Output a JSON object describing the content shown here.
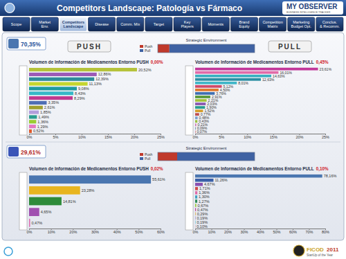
{
  "header": {
    "title": "Competitors Landscape: Patología vs Fármaco",
    "logo": "MY OBSERVER",
    "logo_tagline": "BUSINESS INTELLIGENCE TRACKER"
  },
  "nav": [
    {
      "label": "Scope"
    },
    {
      "label": "Market Env."
    },
    {
      "label": "Competitors Landscape",
      "active": true
    },
    {
      "label": "Disease"
    },
    {
      "label": "Comm. Mix"
    },
    {
      "label": "Target"
    },
    {
      "label": "Key Players"
    },
    {
      "label": "Moments"
    },
    {
      "label": "Brand Equity"
    },
    {
      "label": "Competition Matrix"
    },
    {
      "label": "Marketing Budget Opt."
    },
    {
      "label": "Conclus. & Recomm."
    }
  ],
  "sections": [
    {
      "share": "70,35%",
      "push_label": "PUSH",
      "pull_label": "PULL"
    },
    {
      "share": "29,61%"
    }
  ],
  "footer": {
    "award_name": "FICOD",
    "award_year": "2011",
    "award_subtitle": "StartUp of the Year"
  },
  "chart_data": [
    {
      "type": "bar",
      "orientation": "horizontal",
      "stacked": true,
      "title": "Strategic Environment",
      "categories": [
        null
      ],
      "series": [
        {
          "name": "Push",
          "color": "#c0392b",
          "values": [
            12
          ]
        },
        {
          "name": "Pull",
          "color": "#3f62a3",
          "values": [
            88
          ]
        }
      ],
      "xlim": [
        0,
        100
      ],
      "legend": "left",
      "tick_labels": false,
      "grid": false
    },
    {
      "type": "bar",
      "orientation": "horizontal",
      "title": "Volumen de Información de Medicamentos Entorno PUSH",
      "subtitle": "0,00%",
      "categories": [
        null,
        null,
        null,
        null,
        null,
        null,
        null,
        null,
        null,
        null,
        null,
        null,
        null,
        null
      ],
      "values": [
        20.52,
        12.86,
        12.39,
        11.13,
        9.08,
        8.43,
        8.29,
        3.35,
        2.61,
        1.85,
        1.49,
        1.36,
        1.29,
        0.52
      ],
      "value_labels": [
        "20,52%",
        "12,86%",
        "12,39%",
        "11,13%",
        "9,08%",
        "8,43%",
        "8,29%",
        "3,35%",
        "2,61%",
        "1,85%",
        "1,49%",
        "1,36%",
        "1,29%",
        "0,52%"
      ],
      "colors": [
        "#b5c23a",
        "#9b59b6",
        "#2e8b9a",
        "#c5d62e",
        "#1f9aa0",
        "#36b8c8",
        "#c0398f",
        "#4f6fb5",
        "#a0a030",
        "#b39ddb",
        "#2a9d8f",
        "#9acd32",
        "#e377c2",
        "#e05a2b"
      ],
      "xlim": [
        0,
        25
      ],
      "xticks": [
        {
          "value": 0,
          "label": "0%"
        },
        {
          "value": 5,
          "label": "5%"
        },
        {
          "value": 10,
          "label": "10%"
        },
        {
          "value": 15,
          "label": "15%"
        },
        {
          "value": 20,
          "label": "20%"
        },
        {
          "value": 25,
          "label": "25%"
        }
      ],
      "data_labels": true,
      "tick_labels": "x",
      "grid": false
    },
    {
      "type": "bar",
      "orientation": "horizontal",
      "title": "Volumen de Información de Medicamentos Entorno PULL",
      "subtitle": "0,45%",
      "categories": [
        null,
        null,
        null,
        null,
        null,
        null,
        null,
        null,
        null,
        null,
        null,
        null,
        null,
        null,
        null,
        null,
        null,
        null,
        null
      ],
      "values": [
        23.61,
        16.01,
        14.63,
        12.63,
        8.01,
        5.12,
        4.5,
        3.76,
        2.91,
        2.21,
        2.03,
        1.9,
        1.52,
        0.77,
        0.48,
        0.43,
        0.21,
        0.09,
        0.07
      ],
      "value_labels": [
        "23,61%",
        "16,01%",
        "14,63%",
        "12,63%",
        "8,01%",
        "5,12%",
        "4,50%",
        "3,76%",
        "2,91%",
        "2,21%",
        "2,03%",
        "1,90%",
        "1,52%",
        "0,77%",
        "0,48%",
        "0,43%",
        "0,21%",
        "0,09%",
        "0,07%"
      ],
      "colors": [
        "#c2379a",
        "#e26aa8",
        "#38b0c0",
        "#2b8fa3",
        "#40b6c8",
        "#d04a6a",
        "#e07a30",
        "#3f6fb0",
        "#5a9a3a",
        "#a4c23a",
        "#8a5ab0",
        "#2a9d8f",
        "#d6a030",
        "#c05050",
        "#7aa0d0",
        "#9bbf40",
        "#d070b0",
        "#5070a0",
        "#c04040"
      ],
      "xlim": [
        0,
        25
      ],
      "xticks": [
        {
          "value": 0,
          "label": "0%"
        },
        {
          "value": 5,
          "label": "5%"
        },
        {
          "value": 10,
          "label": "10%"
        },
        {
          "value": 15,
          "label": "15%"
        },
        {
          "value": 20,
          "label": "20%"
        },
        {
          "value": 25,
          "label": "25%"
        }
      ],
      "data_labels": true,
      "tick_labels": "x",
      "grid": false
    },
    {
      "type": "bar",
      "orientation": "horizontal",
      "stacked": true,
      "title": "Strategic Environment",
      "categories": [
        null
      ],
      "series": [
        {
          "name": "Push",
          "color": "#c0392b",
          "values": [
            20
          ]
        },
        {
          "name": "Pull",
          "color": "#3f62a3",
          "values": [
            80
          ]
        }
      ],
      "xlim": [
        0,
        100
      ],
      "legend": "left",
      "tick_labels": false,
      "grid": false
    },
    {
      "type": "bar",
      "orientation": "horizontal",
      "title": "Volumen de Información de Medicamentos Entorno PUSH",
      "subtitle": "0,02%",
      "categories": [
        null,
        null,
        null,
        null,
        null
      ],
      "values": [
        55.61,
        23.28,
        14.81,
        4.65,
        0.47
      ],
      "value_labels": [
        "55,61%",
        "23,28%",
        "14,81%",
        "4,65%",
        "0,47%"
      ],
      "colors": [
        "#4a76b0",
        "#e8b520",
        "#2e8b3a",
        "#a050b0",
        "#e06ab0"
      ],
      "xlim": [
        0,
        60
      ],
      "xticks": [
        {
          "value": 0,
          "label": "0%"
        },
        {
          "value": 10,
          "label": "10%"
        },
        {
          "value": 20,
          "label": "20%"
        },
        {
          "value": 30,
          "label": "30%"
        },
        {
          "value": 40,
          "label": "40%"
        },
        {
          "value": 50,
          "label": "50%"
        },
        {
          "value": 60,
          "label": "60%"
        }
      ],
      "data_labels": true,
      "tick_labels": "x",
      "grid": false
    },
    {
      "type": "bar",
      "orientation": "horizontal",
      "title": "Volumen de Información de Medicamentos Entorno PULL",
      "subtitle": "0,10%",
      "categories": [
        null,
        null,
        null,
        null,
        null,
        null,
        null,
        null,
        null,
        null,
        null,
        null,
        null
      ],
      "values": [
        78.16,
        11.26,
        4.67,
        1.71,
        1.36,
        1.3,
        1.27,
        0.67,
        0.47,
        0.29,
        0.19,
        0.19,
        0.1
      ],
      "value_labels": [
        "78,16%",
        "11,26%",
        "4,67%",
        "1,71%",
        "1,36%",
        "1,30%",
        "1,27%",
        "0,67%",
        "0,47%",
        "0,29%",
        "0,19%",
        "0,19%",
        "0,10%"
      ],
      "colors": [
        "#4a76b0",
        "#3a60a8",
        "#8a50b0",
        "#d04a4a",
        "#e06aa8",
        "#40a0c0",
        "#2e8b57",
        "#9acd32",
        "#c0399a",
        "#e0a030",
        "#7a5ab0",
        "#38b0c0",
        "#c05050"
      ],
      "xlim": [
        0,
        80
      ],
      "xticks": [
        {
          "value": 0,
          "label": "0%"
        },
        {
          "value": 10,
          "label": "10%"
        },
        {
          "value": 20,
          "label": "20%"
        },
        {
          "value": 30,
          "label": "30%"
        },
        {
          "value": 40,
          "label": "40%"
        },
        {
          "value": 50,
          "label": "50%"
        },
        {
          "value": 60,
          "label": "60%"
        },
        {
          "value": 70,
          "label": "70%"
        },
        {
          "value": 80,
          "label": "80%"
        }
      ],
      "data_labels": true,
      "tick_labels": "x",
      "grid": false
    }
  ]
}
